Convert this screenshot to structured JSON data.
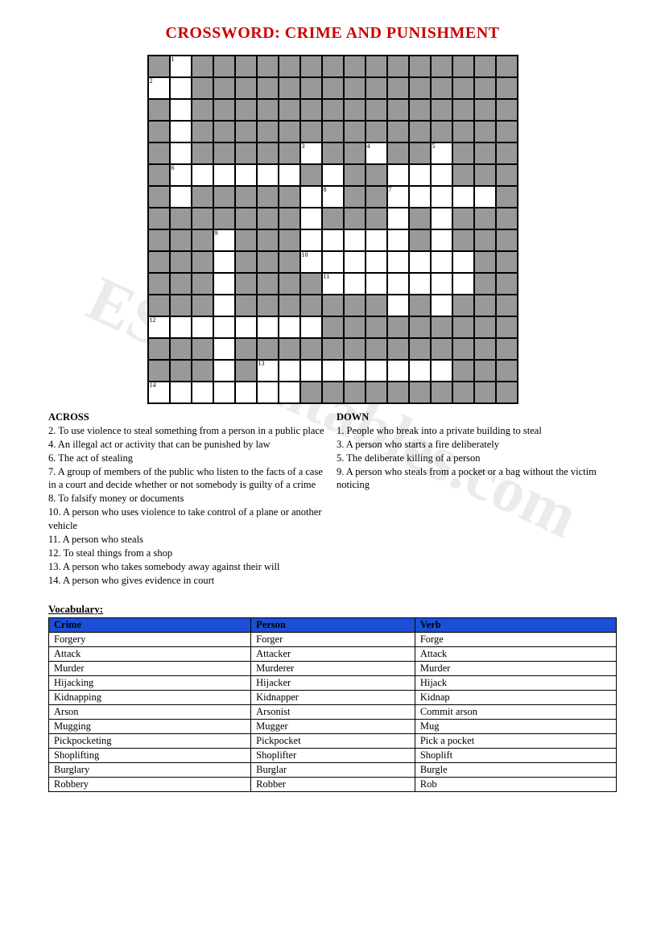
{
  "title": "CROSSWORD: CRIME AND PUNISHMENT",
  "watermark": "ESLprintables.com",
  "grid": {
    "rows": 16,
    "cols": 17,
    "cells": [
      "B_BBBBBBBBBBBBBBB",
      "__BBBBBBBBBBBBBBB",
      "B_BBBBBBBBBBBBBBB",
      "B_BBBBBBBBBBBBBBB",
      "B_BBBBB_BB_BB_BBB",
      "B______B_BB___BBB",
      "B_BBBBB__BB_____B",
      "BBBBBBB_BBB_B_BBB",
      "BBB_BBB_____B_BBB",
      "BBB_BBB________BB",
      "BBB_BBBB_______BB",
      "BBB_BBBBBBB_B_BBB",
      "________BBBBBBBBB",
      "BBB_BBBBBBBBBBBBB",
      "BBB_B_________BBB",
      "_______BBBBBBBBBB"
    ],
    "numbers": {
      "0,1": "1",
      "1,0": "2",
      "4,7": "3",
      "4,10": "4",
      "4,13": "5",
      "5,1": "6",
      "6,11": "7",
      "6,8": "8",
      "8,3": "9",
      "9,7": "10",
      "10,8": "11",
      "12,0": "12",
      "14,5": "13",
      "15,0": "14"
    }
  },
  "clues": {
    "across": {
      "heading": "ACROSS",
      "items": [
        {
          "num": "2",
          "text": "To use violence to steal something from a person in a public place"
        },
        {
          "num": "4",
          "text": "An illegal act or activity that can be punished by law"
        },
        {
          "num": "6",
          "text": "The act of stealing"
        },
        {
          "num": "7",
          "text": "A group of members of the public who listen to the facts of a case in a court and decide whether or not somebody is guilty of a crime"
        },
        {
          "num": "8",
          "text": "To falsify money or documents"
        },
        {
          "num": "10",
          "text": "A person who uses violence to take control of a plane or another vehicle"
        },
        {
          "num": "11",
          "text": "A person who steals"
        },
        {
          "num": "12",
          "text": "To steal things from a shop"
        },
        {
          "num": "13",
          "text": "A person who takes somebody away against their will"
        },
        {
          "num": "14",
          "text": "A person who gives evidence in court"
        }
      ]
    },
    "down": {
      "heading": "DOWN",
      "items": [
        {
          "num": "1",
          "text": "People who break into a private building to steal"
        },
        {
          "num": "3",
          "text": "A person who starts a fire deliberately"
        },
        {
          "num": "5",
          "text": "The deliberate killing of a person"
        },
        {
          "num": "9",
          "text": "A person who steals from a pocket or a bag without the victim noticing"
        }
      ]
    }
  },
  "vocab": {
    "heading": "Vocabulary:",
    "columns": [
      "Crime",
      "Person",
      "Verb"
    ],
    "rows": [
      [
        "Forgery",
        "Forger",
        "Forge"
      ],
      [
        "Attack",
        "Attacker",
        "Attack"
      ],
      [
        "Murder",
        "Murderer",
        "Murder"
      ],
      [
        "Hijacking",
        "Hijacker",
        "Hijack"
      ],
      [
        "Kidnapping",
        "Kidnapper",
        "Kidnap"
      ],
      [
        "Arson",
        "Arsonist",
        "Commit arson"
      ],
      [
        "Mugging",
        "Mugger",
        "Mug"
      ],
      [
        "Pickpocketing",
        "Pickpocket",
        "Pick a pocket"
      ],
      [
        "Shoplifting",
        "Shoplifter",
        "Shoplift"
      ],
      [
        "Burglary",
        "Burglar",
        "Burgle"
      ],
      [
        "Robbery",
        "Robber",
        "Rob"
      ]
    ]
  },
  "colors": {
    "title": "#cc0000",
    "blocked": "#999999",
    "header_bg": "#1a4fd6"
  }
}
